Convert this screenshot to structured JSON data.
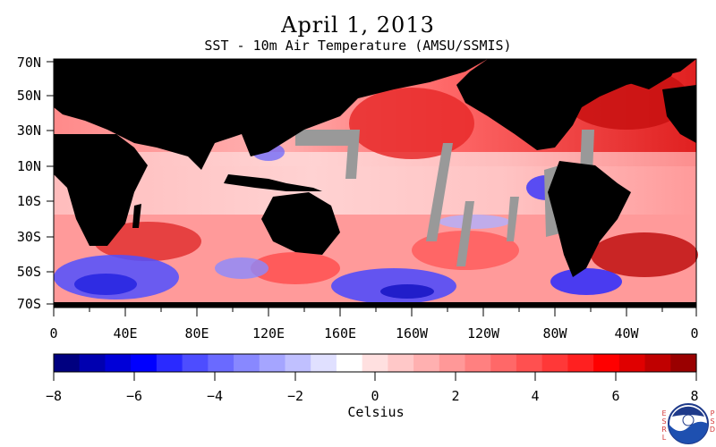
{
  "header": {
    "title": "April 1, 2013",
    "subtitle": "SST - 10m Air Temperature (AMSU/SSMIS)"
  },
  "map": {
    "latitude_labels": [
      "70N",
      "50N",
      "30N",
      "10N",
      "10S",
      "30S",
      "50S",
      "70S"
    ],
    "longitude_labels": [
      "0",
      "40E",
      "80E",
      "120E",
      "160E",
      "160W",
      "120W",
      "80W",
      "40W",
      "0"
    ],
    "colors": {
      "land": "#000000",
      "missing": "#999999",
      "ice": "#b0b0b0"
    }
  },
  "colorbar": {
    "tick_labels": [
      "−8",
      "−6",
      "−4",
      "−2",
      "0",
      "2",
      "4",
      "6",
      "8"
    ],
    "unit_label": "Celsius",
    "range": [
      -8,
      8
    ],
    "colors": [
      "#000080",
      "#0000b0",
      "#0000d8",
      "#0000ff",
      "#2a2aff",
      "#4d4dff",
      "#6a6aff",
      "#8888ff",
      "#a5a5ff",
      "#c0c0ff",
      "#e0e0ff",
      "#ffffff",
      "#ffe0e0",
      "#ffc8c8",
      "#ffb0b0",
      "#ff9898",
      "#ff8080",
      "#ff6868",
      "#ff5050",
      "#ff3838",
      "#ff2020",
      "#ff0000",
      "#e00000",
      "#c00000",
      "#9a0000"
    ]
  },
  "logo": {
    "left_letters": "ESRL",
    "right_letters": "PSD",
    "text": "NOAA"
  }
}
